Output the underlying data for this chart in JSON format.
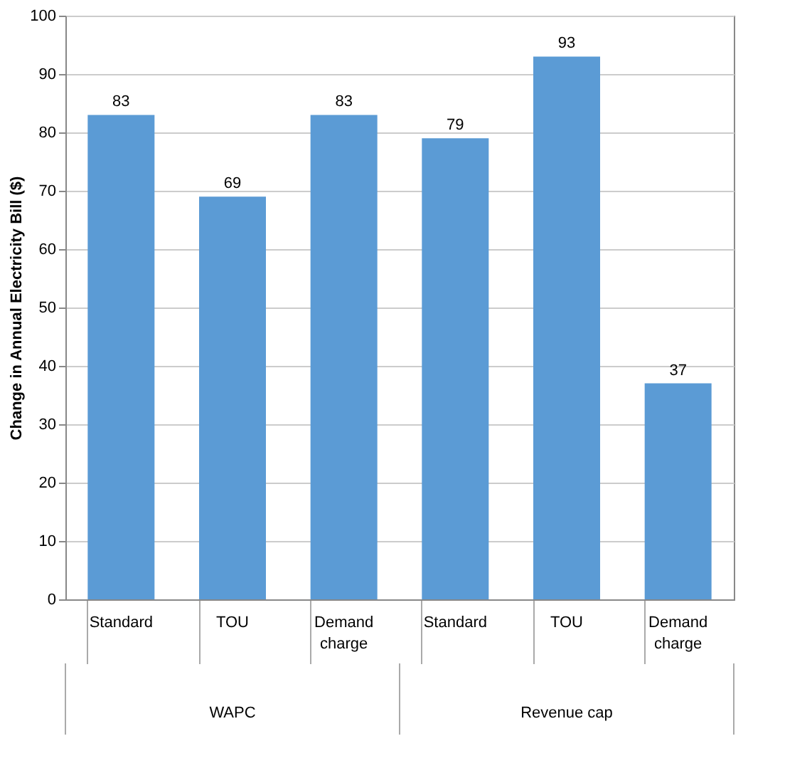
{
  "chart_data": {
    "type": "bar",
    "ylabel": "Change in Annual Electricity Bill ($)",
    "categories": [
      "Standard",
      "TOU",
      "Demand charge",
      "Standard",
      "TOU",
      "Demand charge"
    ],
    "values": [
      83,
      69,
      83,
      79,
      93,
      37
    ],
    "color": "#5b9bd5",
    "ylim": [
      0,
      100
    ],
    "yticks": [
      0,
      10,
      20,
      30,
      40,
      50,
      60,
      70,
      80,
      90,
      100
    ],
    "grid": "y",
    "data_labels": true,
    "annotations": [
      "WAPC",
      "Revenue cap"
    ]
  }
}
